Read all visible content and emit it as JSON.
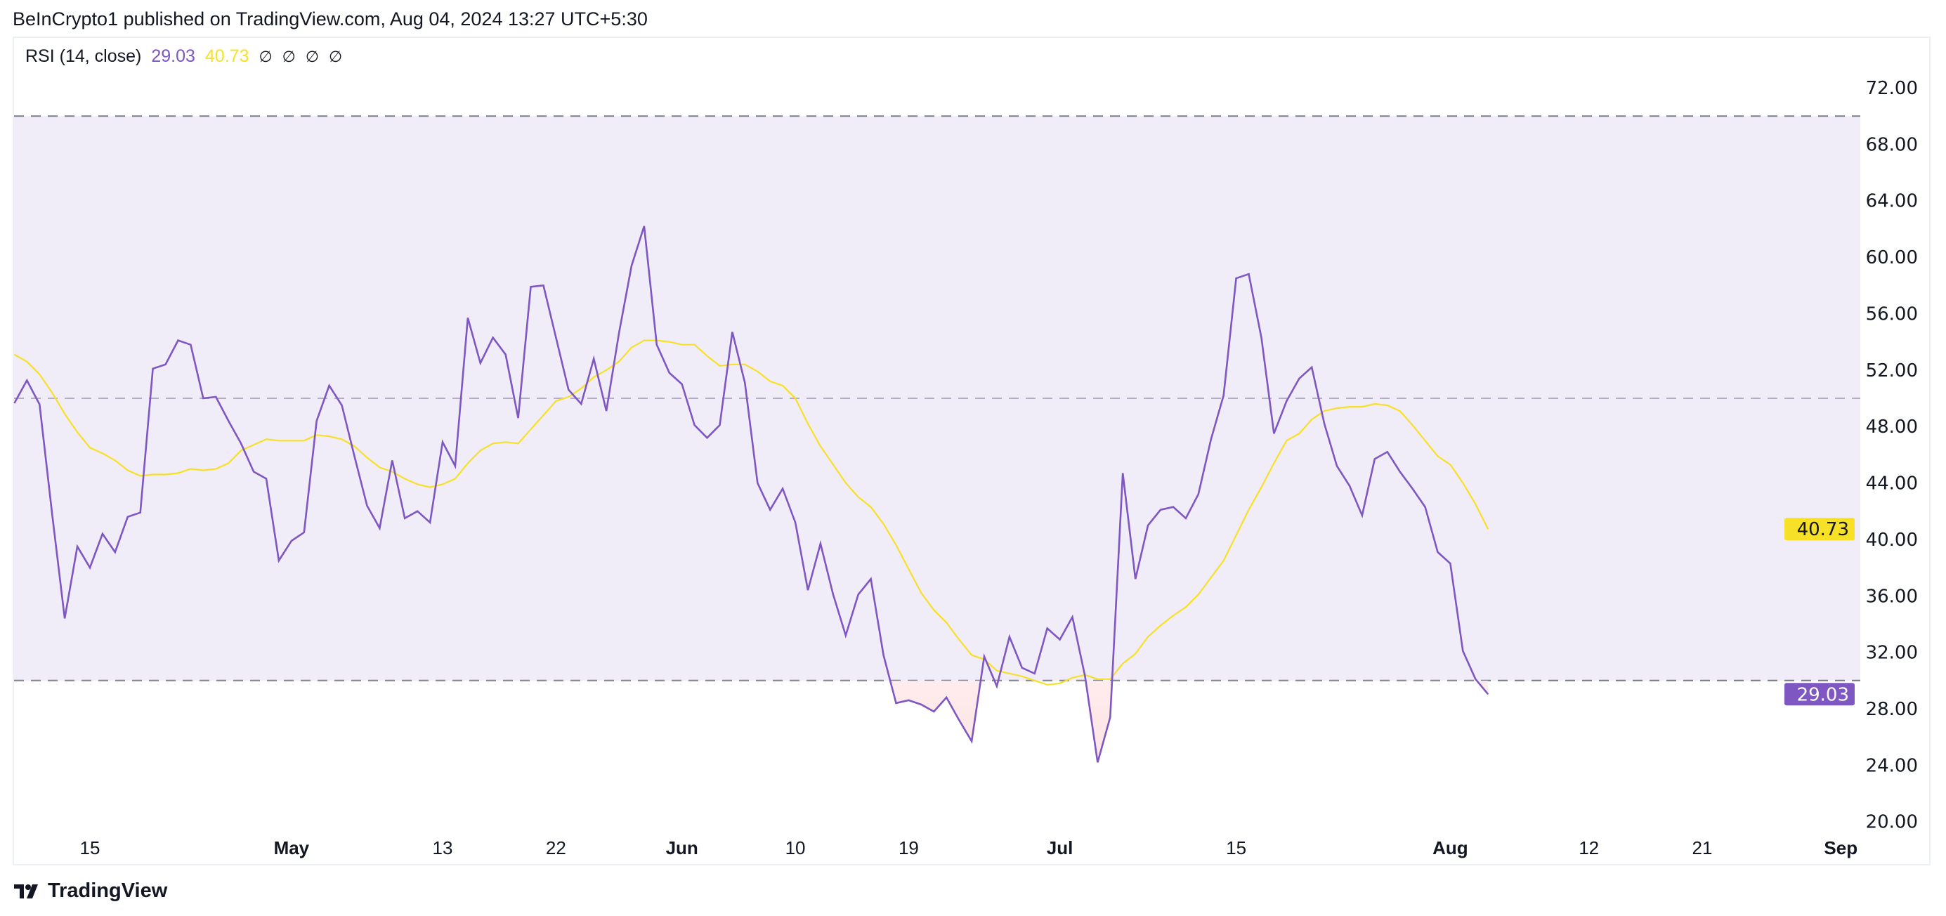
{
  "header": {
    "published": "BeInCrypto1 published on TradingView.com, Aug 04, 2024 13:27 UTC+5:30"
  },
  "legend": {
    "indicator": "RSI (14, close)",
    "rsi_value": "29.03",
    "ma_value": "40.73",
    "na_values": [
      "∅",
      "∅",
      "∅",
      "∅"
    ]
  },
  "footer": {
    "brand": "TradingView"
  },
  "colors": {
    "rsi": "#7e57c2",
    "ma": "#f7e128",
    "band": "#f0ecf8",
    "oversold_fill": "#fde4e4"
  },
  "chart_data": {
    "type": "line",
    "title": "",
    "ylim": [
      18,
      74
    ],
    "yticks": [
      "72.00",
      "68.00",
      "64.00",
      "60.00",
      "56.00",
      "52.00",
      "48.00",
      "44.00",
      "40.00",
      "36.00",
      "32.00",
      "28.00",
      "24.00",
      "20.00"
    ],
    "bands": {
      "upper": 70,
      "middle": 50,
      "lower": 30
    },
    "xticks": [
      {
        "label": "15",
        "date": "2024-04-15"
      },
      {
        "label": "May",
        "date": "2024-05-01"
      },
      {
        "label": "13",
        "date": "2024-05-13"
      },
      {
        "label": "22",
        "date": "2024-05-22"
      },
      {
        "label": "Jun",
        "date": "2024-06-01"
      },
      {
        "label": "10",
        "date": "2024-06-10"
      },
      {
        "label": "19",
        "date": "2024-06-19"
      },
      {
        "label": "Jul",
        "date": "2024-07-01"
      },
      {
        "label": "15",
        "date": "2024-07-15"
      },
      {
        "label": "Aug",
        "date": "2024-08-01"
      },
      {
        "label": "12",
        "date": "2024-08-12"
      },
      {
        "label": "21",
        "date": "2024-08-21"
      },
      {
        "label": "Sep",
        "date": "2024-09-01"
      }
    ],
    "x": [
      "2024-04-09",
      "2024-04-10",
      "2024-04-11",
      "2024-04-12",
      "2024-04-13",
      "2024-04-14",
      "2024-04-15",
      "2024-04-16",
      "2024-04-17",
      "2024-04-18",
      "2024-04-19",
      "2024-04-20",
      "2024-04-21",
      "2024-04-22",
      "2024-04-23",
      "2024-04-24",
      "2024-04-25",
      "2024-04-26",
      "2024-04-27",
      "2024-04-28",
      "2024-04-29",
      "2024-04-30",
      "2024-05-01",
      "2024-05-02",
      "2024-05-03",
      "2024-05-04",
      "2024-05-05",
      "2024-05-06",
      "2024-05-07",
      "2024-05-08",
      "2024-05-09",
      "2024-05-10",
      "2024-05-11",
      "2024-05-12",
      "2024-05-13",
      "2024-05-14",
      "2024-05-15",
      "2024-05-16",
      "2024-05-17",
      "2024-05-18",
      "2024-05-19",
      "2024-05-20",
      "2024-05-21",
      "2024-05-22",
      "2024-05-23",
      "2024-05-24",
      "2024-05-25",
      "2024-05-26",
      "2024-05-27",
      "2024-05-28",
      "2024-05-29",
      "2024-05-30",
      "2024-05-31",
      "2024-06-01",
      "2024-06-02",
      "2024-06-03",
      "2024-06-04",
      "2024-06-05",
      "2024-06-06",
      "2024-06-07",
      "2024-06-08",
      "2024-06-09",
      "2024-06-10",
      "2024-06-11",
      "2024-06-12",
      "2024-06-13",
      "2024-06-14",
      "2024-06-15",
      "2024-06-16",
      "2024-06-17",
      "2024-06-18",
      "2024-06-19",
      "2024-06-20",
      "2024-06-21",
      "2024-06-22",
      "2024-06-23",
      "2024-06-24",
      "2024-06-25",
      "2024-06-26",
      "2024-06-27",
      "2024-06-28",
      "2024-06-29",
      "2024-06-30",
      "2024-07-01",
      "2024-07-02",
      "2024-07-03",
      "2024-07-04",
      "2024-07-05",
      "2024-07-06",
      "2024-07-07",
      "2024-07-08",
      "2024-07-09",
      "2024-07-10",
      "2024-07-11",
      "2024-07-12",
      "2024-07-13",
      "2024-07-14",
      "2024-07-15",
      "2024-07-16",
      "2024-07-17",
      "2024-07-18",
      "2024-07-19",
      "2024-07-20",
      "2024-07-21",
      "2024-07-22",
      "2024-07-23",
      "2024-07-24",
      "2024-07-25",
      "2024-07-26",
      "2024-07-27",
      "2024-07-28",
      "2024-07-29",
      "2024-07-30",
      "2024-07-31",
      "2024-08-01",
      "2024-08-02",
      "2024-08-03",
      "2024-08-04"
    ],
    "series": [
      {
        "name": "RSI",
        "color": "#7e57c2",
        "last_label": "29.03",
        "values": [
          49.65,
          51.27,
          49.57,
          41.8,
          34.4,
          39.5,
          38.0,
          40.4,
          39.1,
          41.6,
          41.9,
          52.1,
          52.4,
          54.1,
          53.8,
          50.0,
          50.1,
          48.4,
          46.8,
          44.8,
          44.3,
          38.5,
          39.9,
          40.5,
          48.4,
          50.9,
          49.5,
          45.9,
          42.4,
          40.8,
          45.6,
          41.5,
          42.0,
          41.2,
          46.9,
          45.2,
          55.7,
          52.5,
          54.3,
          53.1,
          48.6,
          57.9,
          58.0,
          54.3,
          50.6,
          49.6,
          52.8,
          49.1,
          54.6,
          59.4,
          62.2,
          53.8,
          51.8,
          51.0,
          48.1,
          47.2,
          48.1,
          54.7,
          51.1,
          44.0,
          42.1,
          43.6,
          41.2,
          36.4,
          39.7,
          36.1,
          33.2,
          36.1,
          37.2,
          31.8,
          28.4,
          28.6,
          28.3,
          27.8,
          28.8,
          27.2,
          25.7,
          31.7,
          29.6,
          33.1,
          30.9,
          30.5,
          33.7,
          32.9,
          34.5,
          30.3,
          24.2,
          27.4,
          44.7,
          37.2,
          41.0,
          42.1,
          42.3,
          41.5,
          43.2,
          47.1,
          50.2,
          58.5,
          58.8,
          54.3,
          47.5,
          49.8,
          51.4,
          52.2,
          48.2,
          45.2,
          43.8,
          41.7,
          45.7,
          46.2,
          44.8,
          43.6,
          42.3,
          39.1,
          38.3,
          32.1,
          30.1,
          29.03
        ]
      },
      {
        "name": "MA",
        "color": "#f7e128",
        "last_label": "40.73",
        "values": [
          53.1,
          52.6,
          51.7,
          50.4,
          48.9,
          47.6,
          46.5,
          46.1,
          45.6,
          44.9,
          44.5,
          44.6,
          44.6,
          44.7,
          45.0,
          44.9,
          45.0,
          45.4,
          46.3,
          46.7,
          47.1,
          47.0,
          47.0,
          47.0,
          47.4,
          47.3,
          47.1,
          46.6,
          45.8,
          45.1,
          44.8,
          44.3,
          43.9,
          43.7,
          43.9,
          44.3,
          45.4,
          46.3,
          46.8,
          46.9,
          46.8,
          47.8,
          48.8,
          49.8,
          50.1,
          50.7,
          51.5,
          52.0,
          52.6,
          53.6,
          54.1,
          54.1,
          54.0,
          53.8,
          53.8,
          53.0,
          52.3,
          52.4,
          52.4,
          51.9,
          51.2,
          50.9,
          50.0,
          48.2,
          46.6,
          45.3,
          44.0,
          43.0,
          42.3,
          41.1,
          39.6,
          37.9,
          36.2,
          35.0,
          34.1,
          32.9,
          31.8,
          31.5,
          30.7,
          30.5,
          30.3,
          30.0,
          29.7,
          29.8,
          30.2,
          30.4,
          30.1,
          30.1,
          31.2,
          31.9,
          33.1,
          33.9,
          34.6,
          35.2,
          36.1,
          37.3,
          38.5,
          40.3,
          42.1,
          43.7,
          45.4,
          47.0,
          47.5,
          48.5,
          49.1,
          49.3,
          49.4,
          49.4,
          49.6,
          49.5,
          49.1,
          48.1,
          47.0,
          45.9,
          45.3,
          44.0,
          42.5,
          40.73
        ]
      }
    ]
  }
}
